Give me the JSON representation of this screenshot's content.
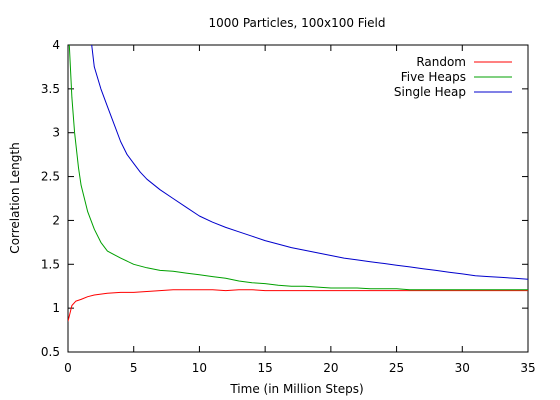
{
  "chart_data": {
    "type": "line",
    "title": "1000 Particles, 100x100 Field",
    "xlabel": "Time (in Million Steps)",
    "ylabel": "Correlation Length",
    "xlim": [
      0,
      35
    ],
    "ylim": [
      0.5,
      4
    ],
    "xticks": [
      0,
      5,
      10,
      15,
      20,
      25,
      30,
      35
    ],
    "yticks": [
      0.5,
      1,
      1.5,
      2,
      2.5,
      3,
      3.5,
      4
    ],
    "xtick_labels": [
      "0",
      "5",
      "10",
      "15",
      "20",
      "25",
      "30",
      "35"
    ],
    "ytick_labels": [
      "0.5",
      "1",
      "1.5",
      "2",
      "2.5",
      "3",
      "3.5",
      "4"
    ],
    "grid": false,
    "legend_position": "top-right",
    "series": [
      {
        "name": "Random",
        "color": "#ff0000",
        "x": [
          0,
          0.3,
          0.6,
          1,
          1.5,
          2,
          3,
          4,
          5,
          6,
          7,
          8,
          9,
          10,
          11,
          12,
          13,
          14,
          15,
          16,
          17,
          18,
          19,
          20,
          21,
          22,
          23,
          24,
          25,
          26,
          27,
          28,
          29,
          30,
          31,
          32,
          33,
          34,
          35
        ],
        "y": [
          0.85,
          1.03,
          1.08,
          1.1,
          1.13,
          1.15,
          1.17,
          1.18,
          1.18,
          1.19,
          1.2,
          1.21,
          1.21,
          1.21,
          1.21,
          1.2,
          1.21,
          1.21,
          1.2,
          1.2,
          1.2,
          1.2,
          1.2,
          1.2,
          1.2,
          1.2,
          1.2,
          1.2,
          1.2,
          1.2,
          1.2,
          1.2,
          1.2,
          1.2,
          1.2,
          1.2,
          1.2,
          1.2,
          1.2
        ]
      },
      {
        "name": "Five Heaps",
        "color": "#00a000",
        "x": [
          0.1,
          0.3,
          0.5,
          0.8,
          1,
          1.5,
          2,
          2.5,
          3,
          4,
          5,
          6,
          7,
          8,
          9,
          10,
          11,
          12,
          13,
          14,
          15,
          16,
          17,
          18,
          19,
          20,
          21,
          22,
          23,
          24,
          25,
          26,
          27,
          28,
          29,
          30,
          31,
          32,
          33,
          34,
          35
        ],
        "y": [
          4.0,
          3.4,
          3.0,
          2.6,
          2.4,
          2.1,
          1.9,
          1.75,
          1.65,
          1.57,
          1.5,
          1.46,
          1.43,
          1.42,
          1.4,
          1.38,
          1.36,
          1.34,
          1.31,
          1.29,
          1.28,
          1.26,
          1.25,
          1.25,
          1.24,
          1.23,
          1.23,
          1.23,
          1.22,
          1.22,
          1.22,
          1.21,
          1.21,
          1.21,
          1.21,
          1.21,
          1.21,
          1.21,
          1.21,
          1.21,
          1.21
        ]
      },
      {
        "name": "Single Heap",
        "color": "#0000cc",
        "x": [
          1.8,
          2,
          2.5,
          3,
          3.5,
          4,
          4.5,
          5,
          5.5,
          6,
          7,
          8,
          9,
          10,
          11,
          12,
          13,
          14,
          15,
          16,
          17,
          18,
          19,
          20,
          21,
          22,
          23,
          24,
          25,
          26,
          27,
          28,
          29,
          30,
          31,
          32,
          33,
          34,
          35
        ],
        "y": [
          4.0,
          3.75,
          3.5,
          3.3,
          3.1,
          2.9,
          2.75,
          2.65,
          2.55,
          2.47,
          2.35,
          2.25,
          2.15,
          2.05,
          1.98,
          1.92,
          1.87,
          1.82,
          1.77,
          1.73,
          1.69,
          1.66,
          1.63,
          1.6,
          1.57,
          1.55,
          1.53,
          1.51,
          1.49,
          1.47,
          1.45,
          1.43,
          1.41,
          1.39,
          1.37,
          1.36,
          1.35,
          1.34,
          1.33
        ]
      }
    ]
  }
}
